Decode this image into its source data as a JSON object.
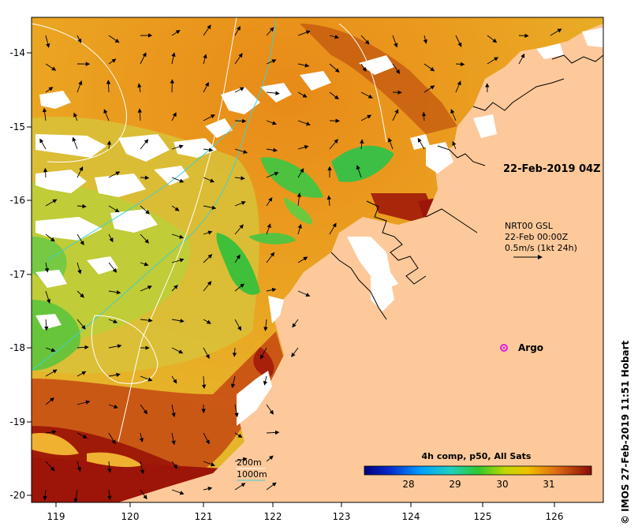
{
  "map": {
    "lon_ticks": [
      "119",
      "120",
      "121",
      "122",
      "123",
      "124",
      "125",
      "126"
    ],
    "lat_ticks": [
      "-14",
      "-15",
      "-16",
      "-17",
      "-18",
      "-19",
      "-20"
    ],
    "date_label": "22-Feb-2019 04Z",
    "current_legend": {
      "line1": "NRT00 GSL",
      "line2": "22-Feb 00:00Z",
      "line3": "0.5m/s (1kt 24h)"
    },
    "argo_label": "Argo",
    "contour_legend": {
      "c200": "200m",
      "c1000": "1000m"
    },
    "colorbar": {
      "title": "4h comp, p50, All Sats",
      "ticks": [
        "28",
        "29",
        "30",
        "31"
      ]
    },
    "credit": "© IMOS 27-Feb-2019 11:51 Hobart",
    "colors": {
      "land": "#fdc99b",
      "ocean_warm": "#e89a1a",
      "ocean_hot": "#9c1508",
      "ocean_cool": "#3cbf3c",
      "cloud": "#ffffff",
      "contour_200": "#40d0d0",
      "contour_1000": "#ffffff",
      "argo": "#e020e0"
    }
  }
}
